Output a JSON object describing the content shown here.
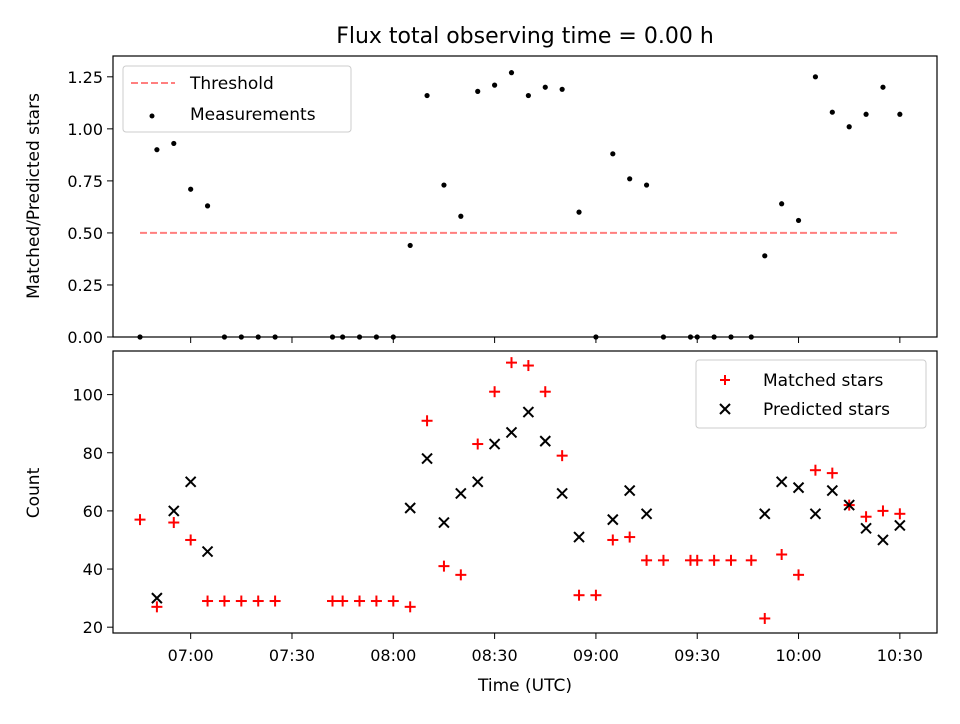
{
  "figure": {
    "title": "Flux total observing time = 0.00 h",
    "xlabel": "Time (UTC)",
    "xticks": [
      "07:00",
      "07:30",
      "08:00",
      "08:30",
      "09:00",
      "09:30",
      "10:00",
      "10:30"
    ]
  },
  "chart_data": [
    {
      "type": "scatter",
      "ylabel": "Matched/Predicted stars",
      "ylim": [
        0,
        1.35
      ],
      "xlim": [
        "06:37",
        "10:41"
      ],
      "yticks": [
        "0.00",
        "0.25",
        "0.50",
        "0.75",
        "1.00",
        "1.25"
      ],
      "legend_position": "top-left",
      "threshold": {
        "name": "Threshold",
        "value": 0.5,
        "x": [
          "06:45",
          "10:30"
        ],
        "color": "#ff7f7f"
      },
      "series": [
        {
          "name": "Measurements",
          "color": "#000000",
          "points": [
            [
              "06:45",
              0.0
            ],
            [
              "06:50",
              0.9
            ],
            [
              "06:55",
              0.93
            ],
            [
              "07:00",
              0.71
            ],
            [
              "07:05",
              0.63
            ],
            [
              "07:10",
              0.0
            ],
            [
              "07:15",
              0.0
            ],
            [
              "07:20",
              0.0
            ],
            [
              "07:25",
              0.0
            ],
            [
              "07:42",
              0.0
            ],
            [
              "07:45",
              0.0
            ],
            [
              "07:50",
              0.0
            ],
            [
              "07:55",
              0.0
            ],
            [
              "08:00",
              0.0
            ],
            [
              "08:05",
              0.44
            ],
            [
              "08:10",
              1.16
            ],
            [
              "08:15",
              0.73
            ],
            [
              "08:20",
              0.58
            ],
            [
              "08:25",
              1.18
            ],
            [
              "08:30",
              1.21
            ],
            [
              "08:35",
              1.27
            ],
            [
              "08:40",
              1.16
            ],
            [
              "08:45",
              1.2
            ],
            [
              "08:50",
              1.19
            ],
            [
              "08:55",
              0.6
            ],
            [
              "09:00",
              0.0
            ],
            [
              "09:05",
              0.88
            ],
            [
              "09:10",
              0.76
            ],
            [
              "09:15",
              0.73
            ],
            [
              "09:20",
              0.0
            ],
            [
              "09:28",
              0.0
            ],
            [
              "09:30",
              0.0
            ],
            [
              "09:35",
              0.0
            ],
            [
              "09:40",
              0.0
            ],
            [
              "09:46",
              0.0
            ],
            [
              "09:50",
              0.39
            ],
            [
              "09:55",
              0.64
            ],
            [
              "10:00",
              0.56
            ],
            [
              "10:05",
              1.25
            ],
            [
              "10:10",
              1.08
            ],
            [
              "10:15",
              1.01
            ],
            [
              "10:20",
              1.07
            ],
            [
              "10:25",
              1.2
            ],
            [
              "10:30",
              1.07
            ]
          ]
        }
      ]
    },
    {
      "type": "scatter",
      "ylabel": "Count",
      "ylim": [
        18,
        115
      ],
      "xlim": [
        "06:37",
        "10:41"
      ],
      "yticks": [
        "20",
        "40",
        "60",
        "80",
        "100"
      ],
      "legend_position": "top-right",
      "series": [
        {
          "name": "Matched stars",
          "marker": "plus",
          "color": "#ff0000",
          "points": [
            [
              "06:45",
              57
            ],
            [
              "06:50",
              27
            ],
            [
              "06:55",
              56
            ],
            [
              "07:00",
              50
            ],
            [
              "07:05",
              29
            ],
            [
              "07:10",
              29
            ],
            [
              "07:15",
              29
            ],
            [
              "07:20",
              29
            ],
            [
              "07:25",
              29
            ],
            [
              "07:42",
              29
            ],
            [
              "07:45",
              29
            ],
            [
              "07:50",
              29
            ],
            [
              "07:55",
              29
            ],
            [
              "08:00",
              29
            ],
            [
              "08:05",
              27
            ],
            [
              "08:10",
              91
            ],
            [
              "08:15",
              41
            ],
            [
              "08:20",
              38
            ],
            [
              "08:25",
              83
            ],
            [
              "08:30",
              101
            ],
            [
              "08:35",
              111
            ],
            [
              "08:40",
              110
            ],
            [
              "08:45",
              101
            ],
            [
              "08:50",
              79
            ],
            [
              "08:55",
              31
            ],
            [
              "09:00",
              31
            ],
            [
              "09:05",
              50
            ],
            [
              "09:10",
              51
            ],
            [
              "09:15",
              43
            ],
            [
              "09:20",
              43
            ],
            [
              "09:28",
              43
            ],
            [
              "09:30",
              43
            ],
            [
              "09:35",
              43
            ],
            [
              "09:40",
              43
            ],
            [
              "09:46",
              43
            ],
            [
              "09:50",
              23
            ],
            [
              "09:55",
              45
            ],
            [
              "10:00",
              38
            ],
            [
              "10:05",
              74
            ],
            [
              "10:10",
              73
            ],
            [
              "10:15",
              62
            ],
            [
              "10:20",
              58
            ],
            [
              "10:25",
              60
            ],
            [
              "10:30",
              59
            ]
          ]
        },
        {
          "name": "Predicted stars",
          "marker": "x",
          "color": "#000000",
          "points": [
            [
              "06:50",
              30
            ],
            [
              "06:55",
              60
            ],
            [
              "07:00",
              70
            ],
            [
              "07:05",
              46
            ],
            [
              "08:05",
              61
            ],
            [
              "08:10",
              78
            ],
            [
              "08:15",
              56
            ],
            [
              "08:20",
              66
            ],
            [
              "08:25",
              70
            ],
            [
              "08:30",
              83
            ],
            [
              "08:35",
              87
            ],
            [
              "08:40",
              94
            ],
            [
              "08:45",
              84
            ],
            [
              "08:50",
              66
            ],
            [
              "08:55",
              51
            ],
            [
              "09:05",
              57
            ],
            [
              "09:10",
              67
            ],
            [
              "09:15",
              59
            ],
            [
              "09:50",
              59
            ],
            [
              "09:55",
              70
            ],
            [
              "10:00",
              68
            ],
            [
              "10:05",
              59
            ],
            [
              "10:10",
              67
            ],
            [
              "10:15",
              62
            ],
            [
              "10:20",
              54
            ],
            [
              "10:25",
              50
            ],
            [
              "10:30",
              55
            ]
          ]
        }
      ]
    }
  ]
}
